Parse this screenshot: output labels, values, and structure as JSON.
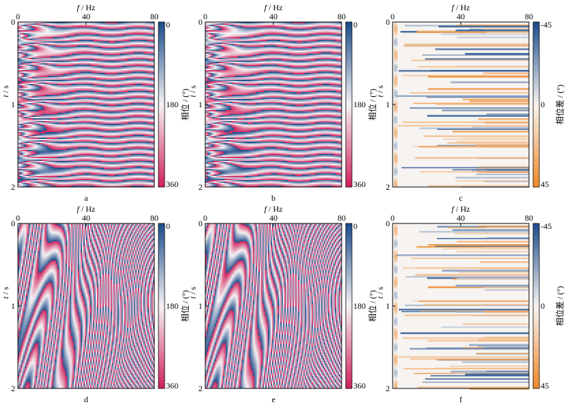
{
  "chart_data": [
    {
      "id": "a",
      "type": "heatmap",
      "panel_label": "a",
      "pattern": "phase_source",
      "xaxis": {
        "label_var": "f",
        "label_unit": " / Hz",
        "range": [
          0,
          80
        ],
        "ticks": [
          0,
          40,
          80
        ],
        "position": "top"
      },
      "yaxis": {
        "label_var": "t",
        "label_unit": " / s",
        "range": [
          0,
          2
        ],
        "ticks": [
          0,
          1,
          2
        ],
        "inverted": true
      },
      "colorbar": {
        "label": "相位 / (°)",
        "ticks": [
          "0",
          "180",
          "360"
        ],
        "range": [
          0,
          360
        ]
      }
    },
    {
      "id": "b",
      "type": "heatmap",
      "panel_label": "b",
      "pattern": "phase_source",
      "xaxis": {
        "label_var": "f",
        "label_unit": " / Hz",
        "range": [
          0,
          80
        ],
        "ticks": [
          0,
          40,
          80
        ],
        "position": "top"
      },
      "yaxis": {
        "label_var": "t",
        "label_unit": " / s",
        "range": [
          0,
          2
        ],
        "ticks": [
          0,
          1,
          2
        ],
        "inverted": true
      },
      "colorbar": {
        "label": "相位 / (°)",
        "ticks": [
          "0",
          "180",
          "360"
        ],
        "range": [
          0,
          360
        ]
      }
    },
    {
      "id": "c",
      "type": "heatmap",
      "panel_label": "c",
      "pattern": "phase_difference",
      "xaxis": {
        "label_var": "f",
        "label_unit": " / Hz",
        "range": [
          0,
          80
        ],
        "ticks": [
          0,
          40,
          80
        ],
        "position": "top"
      },
      "yaxis": {
        "label_var": "t",
        "label_unit": " / s",
        "range": [
          0,
          2
        ],
        "ticks": [
          0,
          1,
          2
        ],
        "inverted": true
      },
      "colorbar": {
        "label": "相位差 / (°)",
        "ticks": [
          "-45",
          "0",
          "45"
        ],
        "range": [
          -45,
          45
        ]
      }
    },
    {
      "id": "d",
      "type": "heatmap",
      "panel_label": "d",
      "pattern": "phase_wave",
      "xaxis": {
        "label_var": "f",
        "label_unit": " / Hz",
        "range": [
          0,
          80
        ],
        "ticks": [
          0,
          40,
          80
        ],
        "position": "top"
      },
      "yaxis": {
        "label_var": "t",
        "label_unit": " / s",
        "range": [
          0,
          2
        ],
        "ticks": [
          0,
          1,
          2
        ],
        "inverted": true
      },
      "colorbar": {
        "label": "相位 / (°)",
        "ticks": [
          "0",
          "180",
          "360"
        ],
        "range": [
          0,
          360
        ]
      }
    },
    {
      "id": "e",
      "type": "heatmap",
      "panel_label": "e",
      "pattern": "phase_wave",
      "xaxis": {
        "label_var": "f",
        "label_unit": " / Hz",
        "range": [
          0,
          80
        ],
        "ticks": [
          0,
          40,
          80
        ],
        "position": "top"
      },
      "yaxis": {
        "label_var": "t",
        "label_unit": " / s",
        "range": [
          0,
          2
        ],
        "ticks": [
          0,
          1,
          2
        ],
        "inverted": true
      },
      "colorbar": {
        "label": "相位 / (°)",
        "ticks": [
          "0",
          "180",
          "360"
        ],
        "range": [
          0,
          360
        ]
      }
    },
    {
      "id": "f",
      "type": "heatmap",
      "panel_label": "f",
      "pattern": "phase_difference",
      "xaxis": {
        "label_var": "f",
        "label_unit": " / Hz",
        "range": [
          0,
          80
        ],
        "ticks": [
          0,
          40,
          80
        ],
        "position": "top"
      },
      "yaxis": {
        "label_var": "t",
        "label_unit": " / s",
        "range": [
          0,
          2
        ],
        "ticks": [
          0,
          1,
          2
        ],
        "inverted": true
      },
      "colorbar": {
        "label": "相位差 / (°)",
        "ticks": [
          "-45",
          "0",
          "45"
        ],
        "range": [
          -45,
          45
        ]
      }
    }
  ],
  "colors": {
    "phase_low": "#1f4e8c",
    "phase_mid": "#f5f2f4",
    "phase_high": "#d0245e",
    "diff_low": "#1f4e8c",
    "diff_mid": "#f6f3f1",
    "diff_high": "#ef8a2b"
  }
}
